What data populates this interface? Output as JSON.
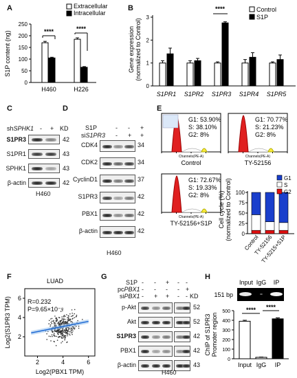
{
  "panels": {
    "A": "A",
    "B": "B",
    "C": "C",
    "D": "D",
    "E": "E",
    "F": "F",
    "G": "G",
    "H": "H"
  },
  "panelA": {
    "legend": [
      "Extracellular",
      "Intracellular"
    ],
    "ylabel": "S1P content (ng)",
    "yticks": [
      "0",
      "50",
      "100",
      "150",
      "200",
      "250"
    ],
    "cells": [
      "H460",
      "H226"
    ],
    "sig": [
      "****",
      "****"
    ]
  },
  "chart_data": [
    {
      "type": "bar",
      "panel": "A",
      "categories": [
        "H460",
        "H226"
      ],
      "series": [
        {
          "name": "Extracellular",
          "values": [
            170,
            185
          ],
          "errors": [
            6,
            6
          ]
        },
        {
          "name": "Intracellular",
          "values": [
            105,
            65
          ],
          "errors": [
            3,
            3
          ]
        }
      ],
      "ylabel": "S1P content (ng)",
      "ylim": [
        0,
        250
      ]
    },
    {
      "type": "bar",
      "panel": "B",
      "categories": [
        "S1PR1",
        "S1PR2",
        "S1PR3",
        "S1PR4",
        "S1PR5"
      ],
      "series": [
        {
          "name": "Control",
          "values": [
            1.0,
            1.0,
            1.0,
            1.0,
            1.0
          ],
          "errors": [
            0.1,
            0.1,
            0.05,
            0.15,
            0.05
          ]
        },
        {
          "name": "S1P",
          "values": [
            1.4,
            1.1,
            2.75,
            1.25,
            1.15
          ],
          "errors": [
            0.25,
            0.1,
            0.05,
            0.2,
            0.2
          ]
        }
      ],
      "ylabel": "Gene expression (normalized to Control)",
      "ylim": [
        0,
        3
      ]
    },
    {
      "type": "bar",
      "panel": "E",
      "categories": [
        "Control",
        "TY-52156",
        "TY-52156+S1P"
      ],
      "series": [
        {
          "name": "G1",
          "values": [
            54,
            71,
            73
          ]
        },
        {
          "name": "S",
          "values": [
            38,
            21,
            19
          ]
        },
        {
          "name": "G2",
          "values": [
            8,
            8,
            8
          ]
        }
      ],
      "ylabel": "Cell cycle (%) (normalized to Control)",
      "ylim": [
        0,
        100
      ]
    },
    {
      "type": "scatter",
      "panel": "F",
      "title": "LUAD",
      "xlabel": "Log2(PBX1 TPM)",
      "ylabel": "Log2(S1PR3 TPM)",
      "xlim": [
        1,
        6.5
      ],
      "ylim": [
        0,
        7
      ],
      "annotations": [
        "R=0.232",
        "P=9.65×10⁻⁸"
      ],
      "regression": {
        "x": [
          1.5,
          6.0
        ],
        "y": [
          2.4,
          3.6
        ]
      }
    },
    {
      "type": "bar",
      "panel": "H",
      "categories": [
        "Input",
        "IgG",
        "IP"
      ],
      "values": [
        390,
        15,
        415
      ],
      "errors": [
        10,
        3,
        10
      ],
      "ylabel": "ChIP of S1PR3 Promoter region",
      "ylim": [
        0,
        500
      ]
    }
  ],
  "panelB": {
    "legend": [
      "Control",
      "S1P"
    ],
    "ylabel1": "Gene expression",
    "ylabel2": "(normalized to Control)",
    "yticks": [
      "0",
      "1",
      "2",
      "3"
    ],
    "genes": [
      "S1PR1",
      "S1PR2",
      "S1PR3",
      "S1PR4",
      "S1PR5"
    ],
    "sig": "****"
  },
  "panelC": {
    "header_prefix": "sh",
    "header_gene": "SPHK1",
    "header_minus": "-",
    "header_plus": "+",
    "header_kd": "KD",
    "rows": [
      {
        "label": "S1PR3",
        "kd": "42",
        "bold": true
      },
      {
        "label": "S1PR1",
        "kd": "43"
      },
      {
        "label": "SPHK1",
        "kd": "43"
      },
      {
        "label": "β-actin",
        "kd": "42"
      }
    ],
    "cell": "H460"
  },
  "panelD": {
    "cond1": "S1P",
    "cond2_prefix": "si",
    "cond2_gene": "S1PR3",
    "signs1": [
      "-",
      "-",
      "+"
    ],
    "signs2": [
      "-",
      "+",
      "+"
    ],
    "rows": [
      {
        "label": "CDK4",
        "kd": "34"
      },
      {
        "label": "CDK2",
        "kd": "34"
      },
      {
        "label": "CyclinD1",
        "kd": "37"
      },
      {
        "label": "S1PR3",
        "kd": "42"
      },
      {
        "label": "PBX1",
        "kd": "42"
      },
      {
        "label": "β-actin",
        "kd": "42"
      }
    ],
    "cell": "H460"
  },
  "panelE": {
    "plots": [
      {
        "title": "Control",
        "g1": "G1: 53.90%",
        "s": "S: 38.10%",
        "g2": "G2: 8%"
      },
      {
        "title": "TY-52156",
        "g1": "G1: 70.77%",
        "s": "S: 21.23%",
        "g2": "G2: 8%"
      },
      {
        "title": "TY-52156+S1P",
        "g1": "G1: 72.67%",
        "s": "S: 19.33%",
        "g2": "G2: 8%"
      }
    ],
    "xaxis": "Channels(PE-A)",
    "legend": [
      "G1",
      "S",
      "G2"
    ],
    "ylabel1": "Cell cycle (%)",
    "ylabel2": "(normalized to Control)",
    "yticks": [
      "0",
      "25",
      "50",
      "75",
      "100"
    ],
    "cats": [
      "Control",
      "TY-52156",
      "TY-5215+S1P"
    ],
    "colors": {
      "G1": "#1a3fcc",
      "S": "#ffffff",
      "G2": "#e01010"
    }
  },
  "panelF": {
    "title": "LUAD",
    "r": "R=0.232",
    "p": "P=9.65×10⁻⁸",
    "xlabel": "Log2(PBX1 TPM)",
    "ylabel": "Log2(S1PR3 TPM)",
    "xticks": [
      "2",
      "4",
      "6"
    ],
    "yticks": [
      "2",
      "4",
      "6"
    ]
  },
  "panelG": {
    "cond1": "S1P",
    "cond2_prefix": "pc",
    "cond2_gene": "PBX1",
    "cond3_prefix": "si",
    "cond3_gene": "PBX1",
    "signs1": [
      "-",
      "-",
      "+",
      "-",
      "-"
    ],
    "signs2": [
      "-",
      "-",
      "-",
      "-",
      "+"
    ],
    "signs3": [
      "-",
      "+",
      "+",
      "-",
      "-"
    ],
    "kd_header": "KD",
    "rows": [
      {
        "label": "p-Akt",
        "kd": "52"
      },
      {
        "label": "Akt",
        "kd": "52"
      },
      {
        "label": "S1PR3",
        "kd": "42",
        "bold": true
      },
      {
        "label": "PBX1",
        "kd": "42"
      },
      {
        "label": "β-actin",
        "kd": "43"
      }
    ],
    "cell": "H460"
  },
  "panelH": {
    "gel_headers": [
      "Input",
      "IgG",
      "IP"
    ],
    "bp": "151 bp",
    "ylabel1": "ChIP of S1PR3",
    "ylabel2": "Promoter region",
    "yticks": [
      "0",
      "100",
      "200",
      "300",
      "400",
      "500"
    ],
    "cats": [
      "Input",
      "IgG",
      "IP"
    ],
    "sig": [
      "****",
      "****"
    ]
  }
}
